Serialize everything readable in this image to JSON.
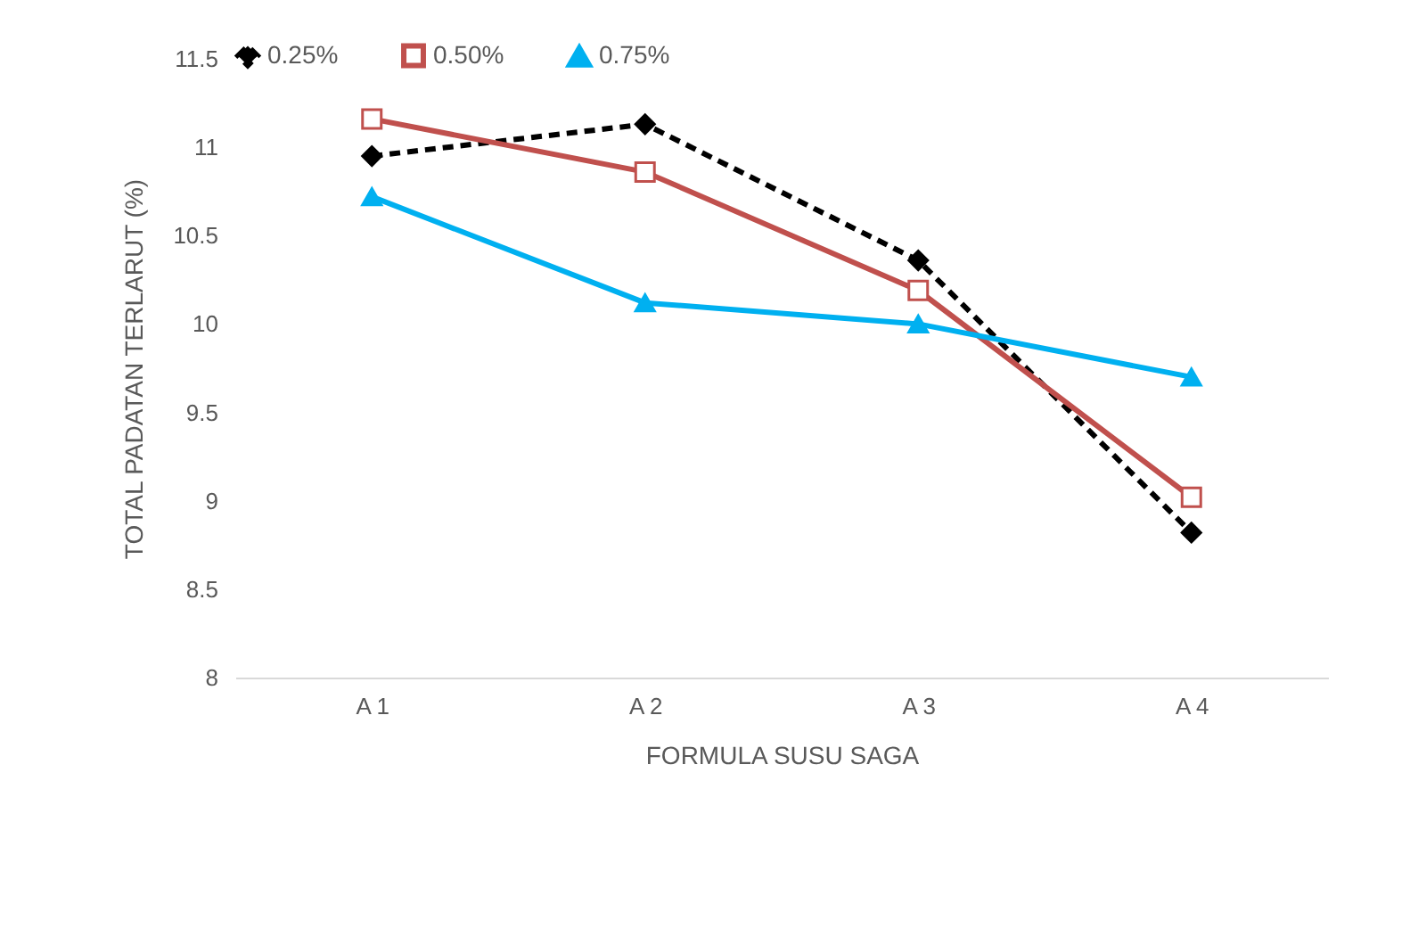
{
  "chart_data": {
    "type": "line",
    "xlabel": "FORMULA  SUSU SAGA",
    "ylabel": "TOTAL PADATAN TERLARUT (%)",
    "categories": [
      "A 1",
      "A 2",
      "A 3",
      "A 4"
    ],
    "series": [
      {
        "name": "0.25%",
        "color": "#000000",
        "values": [
          10.95,
          11.13,
          10.36,
          8.82
        ],
        "marker": "diamond",
        "line_style": "dashed"
      },
      {
        "name": "0.50%",
        "color": "#c0504d",
        "values": [
          11.16,
          10.86,
          10.19,
          9.02
        ],
        "marker": "square",
        "line_style": "solid"
      },
      {
        "name": "0.75%",
        "color": "#00b0f0",
        "values": [
          10.72,
          10.12,
          10.0,
          9.7
        ],
        "marker": "triangle",
        "line_style": "solid"
      }
    ],
    "ylim": [
      8,
      11.5
    ],
    "yticks": [
      8,
      8.5,
      9,
      9.5,
      10,
      10.5,
      11,
      11.5
    ],
    "grid": false,
    "legend": "top"
  }
}
